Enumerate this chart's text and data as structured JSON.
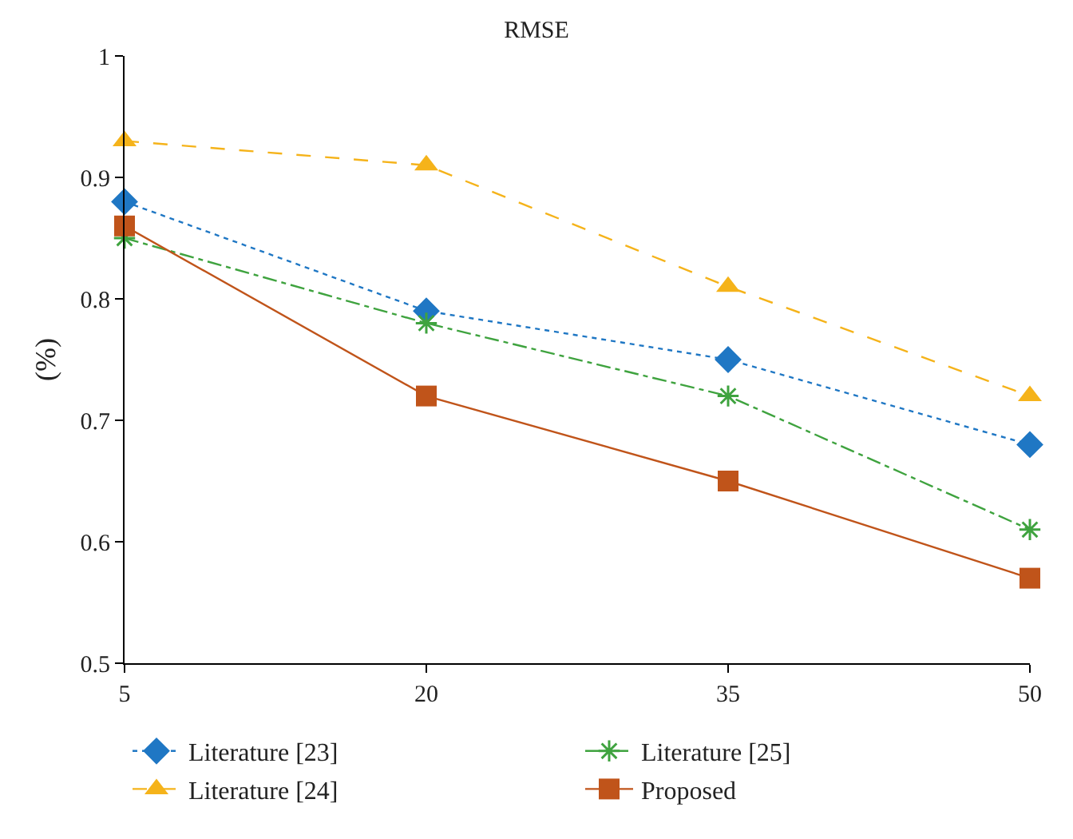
{
  "chart_data": {
    "type": "line",
    "title": "RMSE",
    "ylabel": "(%)",
    "x": [
      5,
      20,
      35,
      50
    ],
    "xlim": [
      5,
      50
    ],
    "xticks": [
      5,
      20,
      35,
      50
    ],
    "ylim": [
      0.5,
      1
    ],
    "yticks": [
      0.5,
      0.6,
      0.7,
      0.8,
      0.9,
      1
    ],
    "legend": "bottom",
    "series": [
      {
        "name": "Literature [23]",
        "color": "#1f77c4",
        "marker": "diamond",
        "line_style": "dotted",
        "values": [
          0.88,
          0.79,
          0.75,
          0.68
        ]
      },
      {
        "name": "Literature [24]",
        "color": "#f5b31a",
        "marker": "triangle",
        "line_style": "dashed",
        "values": [
          0.93,
          0.91,
          0.81,
          0.72
        ]
      },
      {
        "name": "Literature [25]",
        "color": "#3fa33f",
        "marker": "cross",
        "line_style": "dashdot",
        "values": [
          0.85,
          0.78,
          0.72,
          0.61
        ]
      },
      {
        "name": "Proposed",
        "color": "#c0541a",
        "marker": "square",
        "line_style": "solid",
        "values": [
          0.86,
          0.72,
          0.65,
          0.57
        ]
      }
    ]
  }
}
